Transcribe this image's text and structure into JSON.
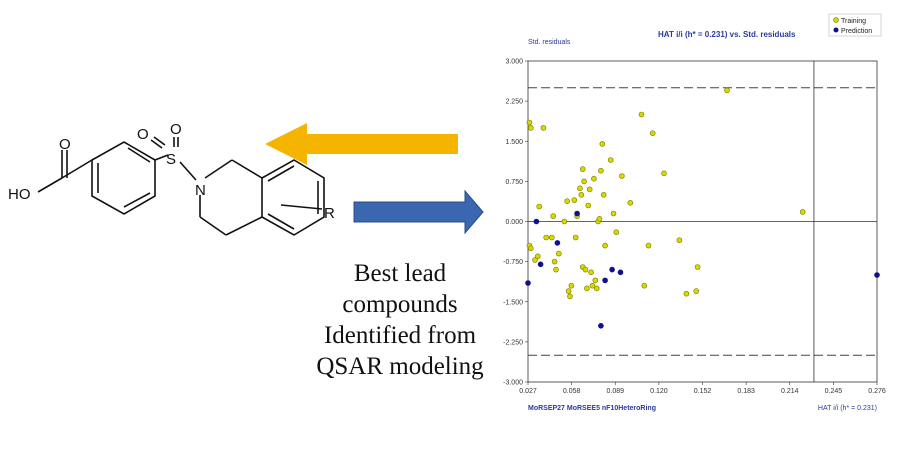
{
  "molecule": {
    "labels": {
      "oxygen": "O",
      "hydroxyl": "HO",
      "nitrogen": "N",
      "sulfur": "S",
      "r_group": "R"
    }
  },
  "arrows": {
    "upper_color": "#f5b400",
    "lower_color": "#3a67b0"
  },
  "caption": {
    "lines": [
      "Best lead",
      "compounds",
      "Identified from",
      "QSAR modeling"
    ]
  },
  "chart_data": {
    "type": "scatter",
    "title": "HAT i/i (h* = 0.231) vs. Std. residuals",
    "ylabel": "Std. residuals",
    "xlabel": "HAT i/i (h* = 0.231)",
    "descriptors_label": "MoRSEP27  MoRSEE5  nF10HeteroRing",
    "xlim": [
      0.027,
      0.276
    ],
    "ylim": [
      -3.0,
      3.0
    ],
    "x_ticks": [
      "0.027",
      "0.058",
      "0.089",
      "0.120",
      "0.152",
      "0.183",
      "0.214",
      "0.245",
      "0.276"
    ],
    "y_ticks": [
      "3.000",
      "2.250",
      "1.500",
      "0.750",
      "0.000",
      "-0.750",
      "-1.500",
      "-2.250",
      "-3.000"
    ],
    "reference_lines": {
      "h_star": 0.231,
      "residual_upper": 2.5,
      "residual_lower": -2.5
    },
    "legend_position": "top-right",
    "grid": false,
    "colors": {
      "training": "#d8d800",
      "prediction": "#10108a"
    },
    "series": [
      {
        "name": "Training",
        "points": [
          [
            0.028,
            1.85
          ],
          [
            0.029,
            1.75
          ],
          [
            0.038,
            1.75
          ],
          [
            0.028,
            -0.45
          ],
          [
            0.029,
            -0.5
          ],
          [
            0.032,
            -0.72
          ],
          [
            0.034,
            -0.65
          ],
          [
            0.035,
            0.28
          ],
          [
            0.04,
            -0.3
          ],
          [
            0.044,
            -0.3
          ],
          [
            0.045,
            0.1
          ],
          [
            0.046,
            -0.75
          ],
          [
            0.047,
            -0.9
          ],
          [
            0.049,
            -0.6
          ],
          [
            0.053,
            0.0
          ],
          [
            0.055,
            0.38
          ],
          [
            0.056,
            -1.3
          ],
          [
            0.057,
            -1.4
          ],
          [
            0.058,
            -1.2
          ],
          [
            0.06,
            0.4
          ],
          [
            0.061,
            -0.3
          ],
          [
            0.062,
            0.1
          ],
          [
            0.064,
            0.62
          ],
          [
            0.065,
            0.5
          ],
          [
            0.066,
            0.98
          ],
          [
            0.067,
            0.75
          ],
          [
            0.066,
            -0.85
          ],
          [
            0.068,
            -0.9
          ],
          [
            0.069,
            -1.25
          ],
          [
            0.07,
            0.3
          ],
          [
            0.071,
            0.6
          ],
          [
            0.072,
            -0.95
          ],
          [
            0.073,
            -1.2
          ],
          [
            0.074,
            0.8
          ],
          [
            0.075,
            -1.1
          ],
          [
            0.076,
            -1.25
          ],
          [
            0.077,
            0.0
          ],
          [
            0.078,
            0.05
          ],
          [
            0.079,
            0.95
          ],
          [
            0.08,
            1.45
          ],
          [
            0.081,
            0.5
          ],
          [
            0.082,
            -0.45
          ],
          [
            0.086,
            1.15
          ],
          [
            0.088,
            0.15
          ],
          [
            0.09,
            -0.2
          ],
          [
            0.094,
            0.85
          ],
          [
            0.1,
            0.35
          ],
          [
            0.108,
            2.0
          ],
          [
            0.11,
            -1.2
          ],
          [
            0.113,
            -0.45
          ],
          [
            0.116,
            1.65
          ],
          [
            0.124,
            0.9
          ],
          [
            0.135,
            -0.35
          ],
          [
            0.14,
            -1.35
          ],
          [
            0.147,
            -1.3
          ],
          [
            0.148,
            -0.85
          ],
          [
            0.169,
            2.45
          ],
          [
            0.223,
            0.18
          ]
        ]
      },
      {
        "name": "Prediction",
        "points": [
          [
            0.027,
            -1.15
          ],
          [
            0.033,
            0.0
          ],
          [
            0.036,
            -0.8
          ],
          [
            0.048,
            -0.4
          ],
          [
            0.062,
            0.15
          ],
          [
            0.079,
            -1.95
          ],
          [
            0.082,
            -1.1
          ],
          [
            0.087,
            -0.9
          ],
          [
            0.093,
            -0.95
          ],
          [
            0.276,
            -1.0
          ]
        ]
      }
    ]
  }
}
